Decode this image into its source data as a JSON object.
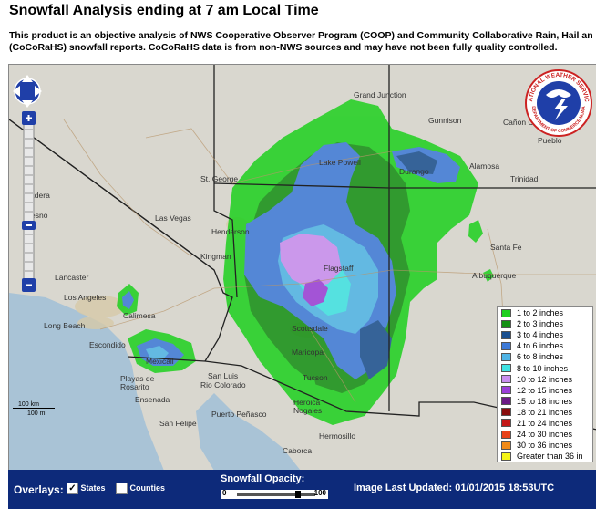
{
  "header": {
    "title": "Snowfall Analysis ending at 7 am Local Time",
    "desc_line1": "This product is an objective analysis of NWS Cooperative Observer Program (COOP) and Community Collaborative Rain, Hail and S",
    "desc_line2": "(CoCoRaHS) snowfall reports.  CoCoRaHS data is from non-NWS sources and may have not been fully quality controlled."
  },
  "map": {
    "cities": [
      {
        "name": "Grand Junction",
        "key": "grand-junction"
      },
      {
        "name": "Gunnison",
        "key": "gunnison"
      },
      {
        "name": "Cañon City",
        "key": "canon-city"
      },
      {
        "name": "Pueblo",
        "key": "pueblo"
      },
      {
        "name": "St. George",
        "key": "st-george"
      },
      {
        "name": "Lake Powell",
        "key": "lake-powell"
      },
      {
        "name": "Durango",
        "key": "durango"
      },
      {
        "name": "Alamosa",
        "key": "alamosa"
      },
      {
        "name": "Trinidad",
        "key": "trinidad"
      },
      {
        "name": "Madera",
        "key": "madera"
      },
      {
        "name": "Las Vegas",
        "key": "las-vegas"
      },
      {
        "name": "Henderson",
        "key": "henderson"
      },
      {
        "name": "Fresno",
        "key": "fresno"
      },
      {
        "name": "Kingman",
        "key": "kingman"
      },
      {
        "name": "Santa Fe",
        "key": "santa-fe"
      },
      {
        "name": "Flagstaff",
        "key": "flagstaff"
      },
      {
        "name": "Albuquerque",
        "key": "albuquerque"
      },
      {
        "name": "Lancaster",
        "key": "lancaster"
      },
      {
        "name": "Los Angeles",
        "key": "los-angeles"
      },
      {
        "name": "Calimesa",
        "key": "calimesa"
      },
      {
        "name": "Long Beach",
        "key": "long-beach"
      },
      {
        "name": "Scottsdale",
        "key": "scottsdale"
      },
      {
        "name": "Escondido",
        "key": "escondido"
      },
      {
        "name": "Maricopa",
        "key": "maricopa"
      },
      {
        "name": "Mexicali",
        "key": "mexicali"
      },
      {
        "name": "San Luis",
        "key": "san-luis"
      },
      {
        "name": "Rio Colorado",
        "key": "rio-colorado"
      },
      {
        "name": "Tucson",
        "key": "tucson"
      },
      {
        "name": "Playas de Rosarito",
        "key": "rosarito"
      },
      {
        "name": "Ensenada",
        "key": "ensenada"
      },
      {
        "name": "Heroica Nogales",
        "key": "nogales"
      },
      {
        "name": "San Felipe",
        "key": "san-felipe"
      },
      {
        "name": "Puerto Peñasco",
        "key": "puerto-penasco"
      },
      {
        "name": "Hermosillo",
        "key": "hermosillo"
      },
      {
        "name": "Caborca",
        "key": "caborca"
      }
    ],
    "scale_km": "100 km",
    "scale_mi": "100 mi"
  },
  "legend": [
    {
      "label": "1 to 2 inches",
      "color": "#1ed01e"
    },
    {
      "label": "2 to 3 inches",
      "color": "#149014"
    },
    {
      "label": "3 to 4 inches",
      "color": "#1a4f8f"
    },
    {
      "label": "4 to 6 inches",
      "color": "#3d7ad8"
    },
    {
      "label": "6 to 8 inches",
      "color": "#4fb4e6"
    },
    {
      "label": "8 to 10 inches",
      "color": "#3fe3e3"
    },
    {
      "label": "10 to 12 inches",
      "color": "#c98ef0"
    },
    {
      "label": "12 to 15 inches",
      "color": "#9a3ed8"
    },
    {
      "label": "15 to 18 inches",
      "color": "#6b1a86"
    },
    {
      "label": "18 to 21 inches",
      "color": "#8a0e0e"
    },
    {
      "label": "21 to 24 inches",
      "color": "#c41818"
    },
    {
      "label": "24 to 30 inches",
      "color": "#e8421a"
    },
    {
      "label": "30 to 36 inches",
      "color": "#f08a18"
    },
    {
      "label": "Greater than 36 in",
      "color": "#f5f518"
    }
  ],
  "bottombar": {
    "overlays_label": "Overlays:",
    "states_label": "States",
    "states_checked": true,
    "counties_label": "Counties",
    "counties_checked": false,
    "opacity_label": "Snowfall Opacity:",
    "opacity_min": "0",
    "opacity_max": "100",
    "opacity_value": 0.78,
    "updated_label": "Image Last Updated: 01/01/2015 18:53UTC"
  },
  "logo": {
    "text_top": "NATIONAL WEATHER SERVICE",
    "text_bottom": "DEPARTMENT OF COMMERCE NOAA"
  }
}
